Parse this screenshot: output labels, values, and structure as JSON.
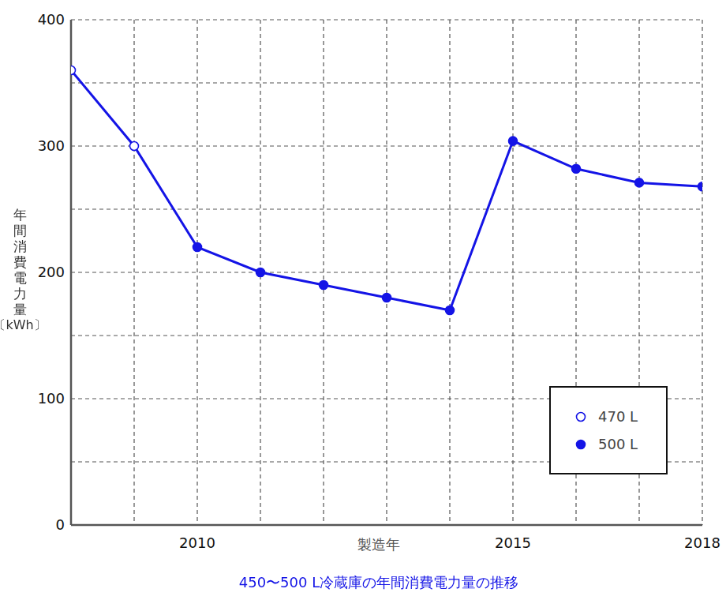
{
  "chart_data": {
    "type": "line",
    "title": "450〜500 L冷蔵庫の年間消費電力量の推移",
    "x_label": "製造年",
    "y_label": "年間消費電力量〔kWh〕",
    "x": [
      2008,
      2009,
      2010,
      2011,
      2012,
      2013,
      2014,
      2015,
      2016,
      2017,
      2018
    ],
    "series": [
      {
        "name": "470 L",
        "color": "#1414e6",
        "marker": "open_circle",
        "values": [
          360,
          300,
          null,
          null,
          null,
          null,
          null,
          null,
          null,
          null,
          null
        ]
      },
      {
        "name": "500 L",
        "color": "#1414e6",
        "marker": "circle",
        "values": [
          null,
          null,
          220,
          200,
          190,
          180,
          170,
          304,
          282,
          271,
          268
        ]
      }
    ],
    "xlim": [
      2008,
      2018
    ],
    "xticks": [
      {
        "value": 2009,
        "label": null
      },
      2010,
      {
        "value": 2011,
        "label": null
      },
      {
        "value": 2012,
        "label": null
      },
      {
        "value": 2013,
        "label": null
      },
      {
        "value": 2014,
        "label": null
      },
      2015,
      {
        "value": 2016,
        "label": null
      },
      {
        "value": 2017,
        "label": null
      },
      2018
    ],
    "ylim": [
      0,
      400
    ],
    "yticks": [
      0,
      {
        "value": 50,
        "label": null
      },
      100,
      {
        "value": 150,
        "label": null
      },
      200,
      {
        "value": 250,
        "label": null
      },
      300,
      {
        "value": 350,
        "label": null
      },
      400
    ],
    "grid": true,
    "legend": "lower right"
  }
}
